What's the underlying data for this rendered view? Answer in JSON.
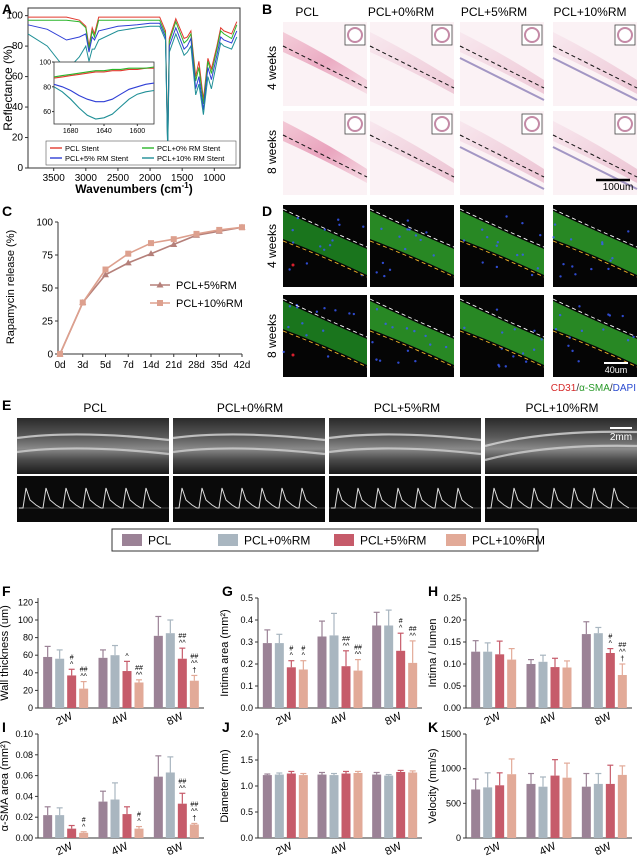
{
  "panel_letters": [
    "A",
    "B",
    "C",
    "D",
    "E",
    "F",
    "G",
    "H",
    "I",
    "J",
    "K"
  ],
  "panel_a": {
    "ylabel": "Reflectance (%)",
    "xlabel": "Wavenumbers (cm",
    "xlabel_sup": "-1",
    "xlabel_close": ")",
    "legend": [
      "PCL Stent",
      "PCL+0% RM Stent",
      "PCL+5% RM Stent",
      "PCL+10% RM Stent"
    ],
    "colors": [
      "#e23a2f",
      "#2bb52b",
      "#2f3fd6",
      "#1f8f96"
    ]
  },
  "panel_b": {
    "columns": [
      "PCL",
      "PCL+0%RM",
      "PCL+5%RM",
      "PCL+10%RM"
    ],
    "rows": [
      "4 weeks",
      "8 weeks"
    ],
    "scale": "100um"
  },
  "panel_d": {
    "rows": [
      "4 weeks",
      "8 weeks"
    ],
    "scale": "40um",
    "stain_cd31": "CD31",
    "stain_sep1": "/",
    "stain_asma": "α-SMA",
    "stain_sep2": "/",
    "stain_dapi": "DAPI"
  },
  "panel_e": {
    "columns": [
      "PCL",
      "PCL+0%RM",
      "PCL+5%RM",
      "PCL+10%RM"
    ],
    "scale": "2mm"
  },
  "group_legend": {
    "labels": [
      "PCL",
      "PCL+0%RM",
      "PCL+5%RM",
      "PCL+10%RM"
    ],
    "colors": [
      "#9b8296",
      "#a9b6c0",
      "#c65b6a",
      "#e2aa98"
    ]
  },
  "chart_data": [
    {
      "panel": "A",
      "type": "line",
      "xlabel": "Wavenumbers (cm-1)",
      "ylabel": "Reflectance (%)",
      "xlim": [
        3900,
        600
      ],
      "ylim": [
        0,
        105
      ],
      "xticks": [
        3500,
        3000,
        2500,
        2000,
        1500,
        1000
      ],
      "yticks": [
        0,
        20,
        40,
        60,
        80,
        100
      ],
      "x": [
        3900,
        3600,
        3300,
        3100,
        3000,
        2950,
        2900,
        2865,
        2800,
        2500,
        2200,
        2000,
        1850,
        1760,
        1725,
        1700,
        1600,
        1470,
        1420,
        1365,
        1290,
        1240,
        1170,
        1100,
        1045,
        960,
        900,
        850,
        730,
        650
      ],
      "series": [
        {
          "name": "PCL Stent",
          "values": [
            99,
            99,
            99,
            97,
            93,
            80,
            92,
            88,
            99,
            99,
            99,
            99,
            99,
            90,
            15,
            85,
            98,
            85,
            86,
            90,
            60,
            70,
            45,
            72,
            65,
            80,
            92,
            90,
            88,
            96
          ]
        },
        {
          "name": "PCL+0% RM Stent",
          "values": [
            97,
            97,
            97,
            96,
            92,
            78,
            90,
            86,
            97,
            97,
            97,
            97,
            97,
            88,
            14,
            83,
            96,
            82,
            84,
            88,
            57,
            66,
            42,
            70,
            62,
            78,
            90,
            88,
            85,
            94
          ]
        },
        {
          "name": "PCL+5% RM Stent",
          "values": [
            94,
            91,
            84,
            86,
            88,
            76,
            86,
            84,
            90,
            93,
            94,
            95,
            95,
            86,
            12,
            80,
            92,
            78,
            80,
            85,
            52,
            60,
            38,
            66,
            58,
            74,
            86,
            84,
            82,
            90
          ]
        },
        {
          "name": "PCL+10% RM Stent",
          "values": [
            88,
            80,
            64,
            73,
            80,
            70,
            78,
            78,
            84,
            90,
            92,
            93,
            93,
            84,
            11,
            76,
            88,
            74,
            76,
            80,
            48,
            55,
            35,
            60,
            52,
            70,
            82,
            80,
            78,
            86
          ]
        }
      ],
      "inset": {
        "xlim": [
          1700,
          1580
        ],
        "ylim": [
          50,
          100
        ],
        "xticks": [
          1680,
          1640,
          1600
        ],
        "yticks": [
          60,
          80,
          100
        ],
        "x": [
          1700,
          1690,
          1680,
          1670,
          1660,
          1650,
          1640,
          1630,
          1620,
          1610,
          1600,
          1590,
          1580
        ],
        "series": [
          {
            "name": "PCL Stent",
            "values": [
              87,
              88,
              89,
              90,
              91,
              92,
              92,
              93,
              93,
              94,
              94,
              95,
              95
            ]
          },
          {
            "name": "PCL+0% RM Stent",
            "values": [
              88,
              89,
              90,
              91,
              92,
              93,
              93,
              94,
              94,
              95,
              95,
              95,
              96
            ]
          },
          {
            "name": "PCL+5% RM Stent",
            "values": [
              82,
              80,
              77,
              73,
              70,
              68,
              68,
              70,
              74,
              78,
              80,
              82,
              83
            ]
          },
          {
            "name": "PCL+10% RM Stent",
            "values": [
              80,
              76,
              70,
              63,
              57,
              54,
              55,
              58,
              64,
              70,
              74,
              76,
              77
            ]
          }
        ]
      }
    },
    {
      "panel": "C",
      "type": "line",
      "ylabel": "Rapamycin release (%)",
      "categories": [
        "0d",
        "3d",
        "5d",
        "7d",
        "14d",
        "21d",
        "28d",
        "35d",
        "42d"
      ],
      "ylim": [
        0,
        100
      ],
      "yticks": [
        0,
        25,
        50,
        75,
        100
      ],
      "series": [
        {
          "name": "PCL+5%RM",
          "values": [
            0,
            39,
            60,
            69,
            76,
            83,
            90,
            93,
            96
          ]
        },
        {
          "name": "PCL+10%RM",
          "values": [
            0,
            39,
            64,
            76,
            84,
            87,
            91,
            94,
            96
          ]
        }
      ]
    },
    {
      "panel": "F",
      "type": "bar",
      "ylabel": "Wall thickness (um)",
      "categories": [
        "2W",
        "4W",
        "8W"
      ],
      "ylim": [
        0,
        125
      ],
      "yticks": [
        0,
        20,
        40,
        60,
        80,
        100,
        120
      ],
      "series": [
        {
          "name": "PCL",
          "values": [
            58,
            57,
            82
          ],
          "errors": [
            12,
            9,
            22
          ]
        },
        {
          "name": "PCL+0%RM",
          "values": [
            56,
            60,
            85
          ],
          "errors": [
            10,
            11,
            15
          ]
        },
        {
          "name": "PCL+5%RM",
          "values": [
            37,
            42,
            56
          ],
          "errors": [
            7,
            11,
            12
          ]
        },
        {
          "name": "PCL+10%RM",
          "values": [
            22,
            29,
            31
          ],
          "errors": [
            8,
            3,
            6
          ]
        }
      ],
      "annotations": [
        {
          "category": "2W",
          "series": 2,
          "lines": [
            "#",
            "^"
          ]
        },
        {
          "category": "2W",
          "series": 3,
          "lines": [
            "##",
            "^^"
          ]
        },
        {
          "category": "4W",
          "series": 2,
          "lines": [
            "^"
          ]
        },
        {
          "category": "4W",
          "series": 3,
          "lines": [
            "##",
            "^^"
          ]
        },
        {
          "category": "8W",
          "series": 2,
          "lines": [
            "##",
            "^^"
          ]
        },
        {
          "category": "8W",
          "series": 3,
          "lines": [
            "##",
            "^^",
            "†"
          ]
        }
      ]
    },
    {
      "panel": "G",
      "type": "bar",
      "ylabel": "Intima area (mm²)",
      "categories": [
        "2W",
        "4W",
        "8W"
      ],
      "ylim": [
        0,
        0.5
      ],
      "yticks": [
        0.0,
        0.1,
        0.2,
        0.3,
        0.4,
        0.5
      ],
      "series": [
        {
          "name": "PCL",
          "values": [
            0.295,
            0.325,
            0.375
          ],
          "errors": [
            0.06,
            0.07,
            0.06
          ]
        },
        {
          "name": "PCL+0%RM",
          "values": [
            0.295,
            0.33,
            0.375
          ],
          "errors": [
            0.04,
            0.1,
            0.07
          ]
        },
        {
          "name": "PCL+5%RM",
          "values": [
            0.185,
            0.19,
            0.26
          ],
          "errors": [
            0.03,
            0.07,
            0.08
          ]
        },
        {
          "name": "PCL+10%RM",
          "values": [
            0.175,
            0.17,
            0.205
          ],
          "errors": [
            0.04,
            0.05,
            0.1
          ]
        }
      ],
      "annotations": [
        {
          "category": "2W",
          "series": 2,
          "lines": [
            "#",
            "^"
          ]
        },
        {
          "category": "2W",
          "series": 3,
          "lines": [
            "#",
            "^"
          ]
        },
        {
          "category": "4W",
          "series": 2,
          "lines": [
            "##",
            "^^"
          ]
        },
        {
          "category": "4W",
          "series": 3,
          "lines": [
            "##",
            "^^"
          ]
        },
        {
          "category": "8W",
          "series": 2,
          "lines": [
            "#",
            "^"
          ]
        },
        {
          "category": "8W",
          "series": 3,
          "lines": [
            "##",
            "^^"
          ]
        }
      ]
    },
    {
      "panel": "H",
      "type": "bar",
      "ylabel": "Intima / lumen",
      "categories": [
        "2W",
        "4W",
        "8W"
      ],
      "ylim": [
        0,
        0.25
      ],
      "yticks": [
        0.0,
        0.05,
        0.1,
        0.15,
        0.2,
        0.25
      ],
      "series": [
        {
          "name": "PCL",
          "values": [
            0.128,
            0.1,
            0.168
          ],
          "errors": [
            0.025,
            0.01,
            0.028
          ]
        },
        {
          "name": "PCL+0%RM",
          "values": [
            0.128,
            0.105,
            0.17
          ],
          "errors": [
            0.02,
            0.015,
            0.013
          ]
        },
        {
          "name": "PCL+5%RM",
          "values": [
            0.122,
            0.093,
            0.125
          ],
          "errors": [
            0.03,
            0.02,
            0.01
          ]
        },
        {
          "name": "PCL+10%RM",
          "values": [
            0.11,
            0.092,
            0.075
          ],
          "errors": [
            0.025,
            0.015,
            0.025
          ]
        }
      ],
      "annotations": [
        {
          "category": "8W",
          "series": 2,
          "lines": [
            "#",
            "^"
          ]
        },
        {
          "category": "8W",
          "series": 3,
          "lines": [
            "##",
            "^^",
            "†"
          ]
        }
      ]
    },
    {
      "panel": "I",
      "type": "bar",
      "ylabel": "α-SMA area (mm²)",
      "categories": [
        "2W",
        "4W",
        "8W"
      ],
      "ylim": [
        0,
        0.1
      ],
      "yticks": [
        0.0,
        0.02,
        0.04,
        0.06,
        0.08,
        0.1
      ],
      "series": [
        {
          "name": "PCL",
          "values": [
            0.022,
            0.035,
            0.059
          ],
          "errors": [
            0.008,
            0.01,
            0.02
          ]
        },
        {
          "name": "PCL+0%RM",
          "values": [
            0.022,
            0.037,
            0.063
          ],
          "errors": [
            0.007,
            0.016,
            0.015
          ]
        },
        {
          "name": "PCL+5%RM",
          "values": [
            0.009,
            0.023,
            0.033
          ],
          "errors": [
            0.003,
            0.007,
            0.01
          ]
        },
        {
          "name": "PCL+10%RM",
          "values": [
            0.005,
            0.009,
            0.013
          ],
          "errors": [
            0.001,
            0.002,
            0.001
          ]
        }
      ],
      "annotations": [
        {
          "category": "2W",
          "series": 3,
          "lines": [
            "#",
            "^"
          ]
        },
        {
          "category": "4W",
          "series": 3,
          "lines": [
            "#",
            "^"
          ]
        },
        {
          "category": "8W",
          "series": 2,
          "lines": [
            "##",
            "^^"
          ]
        },
        {
          "category": "8W",
          "series": 3,
          "lines": [
            "##",
            "^^",
            "†"
          ]
        }
      ]
    },
    {
      "panel": "J",
      "type": "bar",
      "ylabel": "Diameter (mm)",
      "categories": [
        "2W",
        "4W",
        "8W"
      ],
      "ylim": [
        0,
        2.0
      ],
      "yticks": [
        0.0,
        0.5,
        1.0,
        1.5,
        2.0
      ],
      "series": [
        {
          "name": "PCL",
          "values": [
            1.21,
            1.22,
            1.22
          ],
          "errors": [
            0.02,
            0.04,
            0.04
          ]
        },
        {
          "name": "PCL+0%RM",
          "values": [
            1.22,
            1.21,
            1.2
          ],
          "errors": [
            0.03,
            0.03,
            0.02
          ]
        },
        {
          "name": "PCL+5%RM",
          "values": [
            1.24,
            1.24,
            1.27
          ],
          "errors": [
            0.04,
            0.04,
            0.03
          ]
        },
        {
          "name": "PCL+10%RM",
          "values": [
            1.21,
            1.25,
            1.26
          ],
          "errors": [
            0.03,
            0.03,
            0.03
          ]
        }
      ],
      "annotations": []
    },
    {
      "panel": "K",
      "type": "bar",
      "ylabel": "Velocity (mm/s)",
      "categories": [
        "2W",
        "4W",
        "8W"
      ],
      "ylim": [
        0,
        1500
      ],
      "yticks": [
        0,
        500,
        1000,
        1500
      ],
      "series": [
        {
          "name": "PCL",
          "values": [
            700,
            780,
            740
          ],
          "errors": [
            150,
            150,
            190
          ]
        },
        {
          "name": "PCL+0%RM",
          "values": [
            730,
            740,
            780
          ],
          "errors": [
            210,
            140,
            150
          ]
        },
        {
          "name": "PCL+5%RM",
          "values": [
            760,
            900,
            780
          ],
          "errors": [
            180,
            230,
            270
          ]
        },
        {
          "name": "PCL+10%RM",
          "values": [
            920,
            870,
            910
          ],
          "errors": [
            220,
            210,
            130
          ]
        }
      ],
      "annotations": []
    }
  ]
}
